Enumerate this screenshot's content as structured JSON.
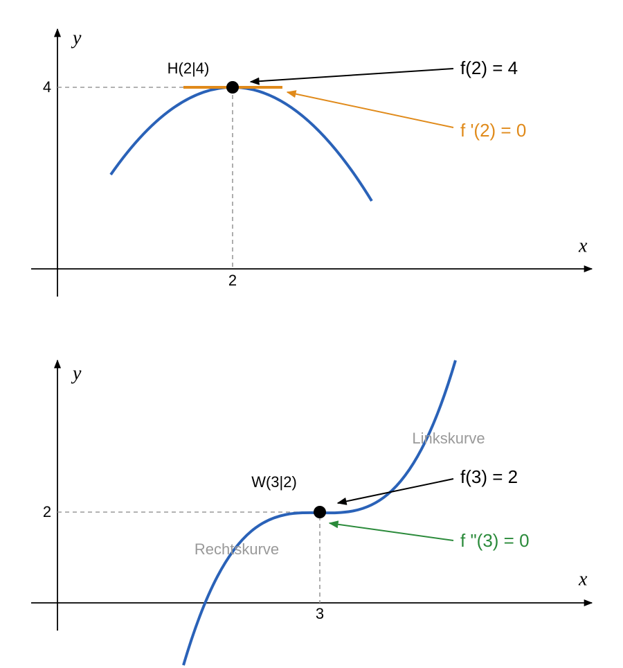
{
  "diagrams": [
    {
      "axis_y": "y",
      "axis_x": "x",
      "y_tick": 4,
      "x_tick": 2,
      "point_label": "H(2|4)",
      "annotations": [
        "f(2) = 4",
        "f '(2) = 0"
      ]
    },
    {
      "axis_y": "y",
      "axis_x": "x",
      "y_tick": 2,
      "x_tick": 3,
      "point_label": "W(3|2)",
      "annotations": [
        "f(3) = 2",
        "f \"(3) = 0"
      ],
      "regions": [
        "Linkskurve",
        "Rechtskurve"
      ]
    }
  ]
}
